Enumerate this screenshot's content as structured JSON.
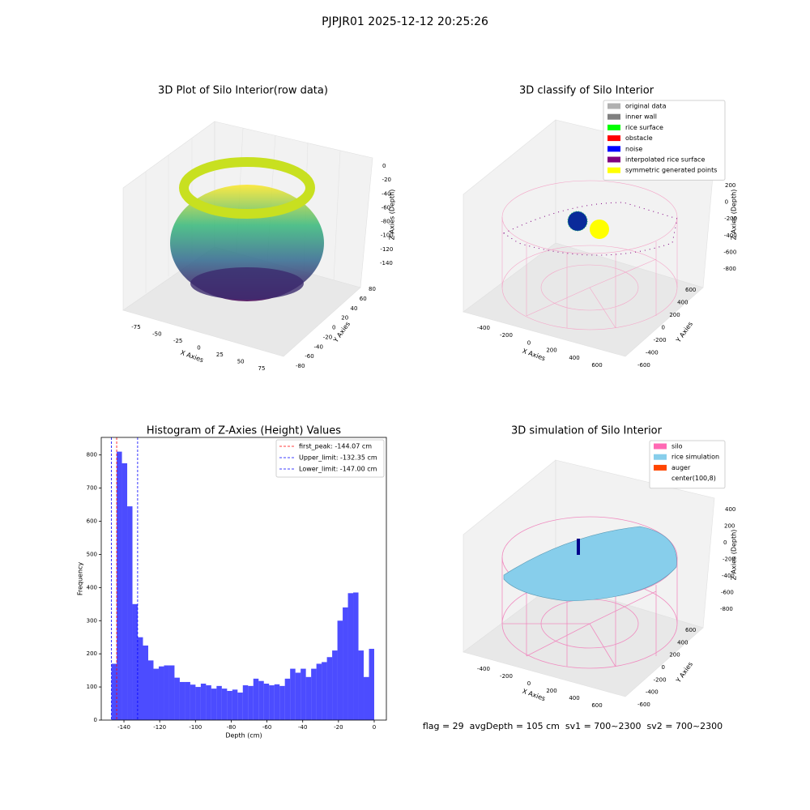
{
  "title": "PJPJR01 2025-12-12 20:25:26",
  "footer": "flag = 29  avgDepth = 105 cm  sv1 = 700~2300  sv2 = 700~2300",
  "chart_data": [
    {
      "type": "scatter3d",
      "title": "3D Plot of Silo Interior(row data)",
      "xlabel": "X Axies",
      "ylabel": "Y Axies",
      "zlabel": "Z Axies (Depth)",
      "xticks": [
        -75,
        -50,
        -25,
        0,
        25,
        50,
        75
      ],
      "yticks": [
        -80,
        -60,
        -40,
        -20,
        0,
        20,
        40,
        60,
        80
      ],
      "zticks": [
        0,
        -20,
        -40,
        -60,
        -80,
        -100,
        -120,
        -140
      ]
    },
    {
      "type": "scatter3d",
      "title": "3D classify of Silo Interior",
      "xlabel": "X Axies",
      "ylabel": "Y Axies",
      "zlabel": "Z Axies (Depth)",
      "xticks": [
        -400,
        -200,
        0,
        200,
        400,
        600
      ],
      "yticks": [
        -600,
        -400,
        -200,
        0,
        200,
        400,
        600
      ],
      "zticks": [
        200,
        0,
        -200,
        -400,
        -600,
        -800
      ],
      "legend": [
        {
          "name": "original data",
          "color": "#b0b0b0"
        },
        {
          "name": "inner wall",
          "color": "#808080"
        },
        {
          "name": "rice surface",
          "color": "#00ff00"
        },
        {
          "name": "obstacle",
          "color": "#ff0000"
        },
        {
          "name": "noise",
          "color": "#0000ff"
        },
        {
          "name": "interpolated rice surface",
          "color": "#800080"
        },
        {
          "name": "symmetric generated points",
          "color": "#ffff00"
        }
      ]
    },
    {
      "type": "histogram",
      "title": "Histogram of Z-Axies (Height) Values",
      "xlabel": "Depth (cm)",
      "ylabel": "Frequency",
      "color": "#0000ff",
      "bins": [
        -147,
        -144.06,
        -141.12,
        -138.18,
        -135.24,
        -132.3,
        -129.36,
        -126.42,
        -123.48,
        -120.54,
        -117.6,
        -114.66,
        -111.72,
        -108.78,
        -105.84,
        -102.9,
        -99.96,
        -97.02,
        -94.08,
        -91.14,
        -88.2,
        -85.26,
        -82.32,
        -79.38,
        -76.44,
        -73.5,
        -70.56,
        -67.62,
        -64.68,
        -61.74,
        -58.8,
        -55.86,
        -52.92,
        -49.98,
        -47.04,
        -44.1,
        -41.16,
        -38.22,
        -35.28,
        -32.34,
        -29.4,
        -26.46,
        -23.52,
        -20.58,
        -17.64,
        -14.7,
        -11.76,
        -8.82,
        -5.88,
        -2.94,
        0
      ],
      "values": [
        170,
        810,
        775,
        645,
        350,
        250,
        225,
        180,
        155,
        162,
        165,
        165,
        128,
        115,
        115,
        107,
        100,
        110,
        105,
        95,
        103,
        95,
        88,
        92,
        83,
        105,
        103,
        125,
        118,
        110,
        105,
        108,
        103,
        125,
        155,
        143,
        155,
        130,
        155,
        170,
        175,
        190,
        210,
        300,
        340,
        383,
        385,
        210,
        130,
        215
      ],
      "xlim": [
        -152.7,
        6.8
      ],
      "ylim": [
        0,
        853
      ],
      "xticks": [
        -140,
        -120,
        -100,
        -80,
        -60,
        -40,
        -20,
        0
      ],
      "yticks": [
        0,
        100,
        200,
        300,
        400,
        500,
        600,
        700,
        800
      ],
      "vlines": [
        {
          "name": "first_peak: -144.07 cm",
          "value": -144.07,
          "color": "#ff0000"
        },
        {
          "name": "Upper_limit: -132.35 cm",
          "value": -132.35,
          "color": "#0000ff"
        },
        {
          "name": "Lower_limit: -147.00 cm",
          "value": -147.0,
          "color": "#0000ff"
        }
      ]
    },
    {
      "type": "surface3d",
      "title": "3D simulation of Silo Interior",
      "xlabel": "X Axies",
      "ylabel": "Y Axies",
      "zlabel": "Z Axies (Depth)",
      "xticks": [
        -400,
        -200,
        0,
        200,
        400,
        600
      ],
      "yticks": [
        -600,
        -400,
        -200,
        0,
        200,
        400,
        600
      ],
      "zticks": [
        400,
        200,
        0,
        -200,
        -400,
        -600,
        -800
      ],
      "legend": [
        {
          "name": "silo",
          "color": "#ff69b4"
        },
        {
          "name": "rice simulation",
          "color": "#87ceeb"
        },
        {
          "name": "auger",
          "color": "#ff4500"
        },
        {
          "name": "center(100,8)",
          "color": "#ffffff"
        }
      ]
    }
  ]
}
